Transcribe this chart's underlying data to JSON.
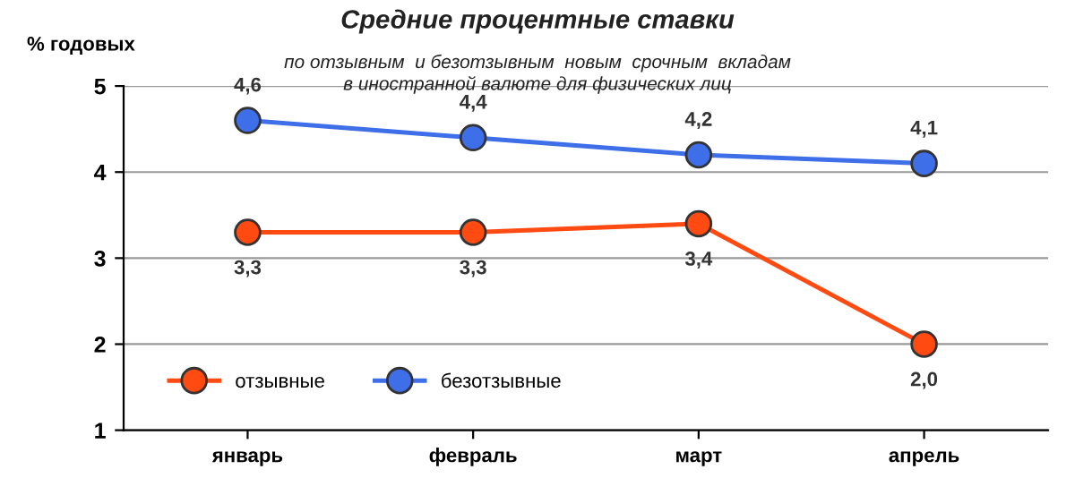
{
  "chart_data": {
    "type": "line",
    "title": "Средние процентные ставки",
    "subtitle": "по отзывным  и безотзывным  новым  срочным  вкладам\nв иностранной валюте для физических лиц",
    "ylabel": "% годовых",
    "categories": [
      "январь",
      "февраль",
      "март",
      "апрель"
    ],
    "series": [
      {
        "name": "отзывные",
        "color": "#ff4a12",
        "values": [
          3.3,
          3.3,
          3.4,
          2.0
        ],
        "value_labels": [
          "3,3",
          "3,3",
          "3,4",
          "2,0"
        ]
      },
      {
        "name": "безотзывные",
        "color": "#3f6fe8",
        "values": [
          4.6,
          4.4,
          4.2,
          4.1
        ],
        "value_labels": [
          "4,6",
          "4,4",
          "4,2",
          "4,1"
        ]
      }
    ],
    "ylim": [
      1,
      5
    ],
    "yticks": [
      1,
      2,
      3,
      4,
      5
    ],
    "grid": "y",
    "legend": "bottom left",
    "marker": "circle",
    "line_style": "solid"
  }
}
